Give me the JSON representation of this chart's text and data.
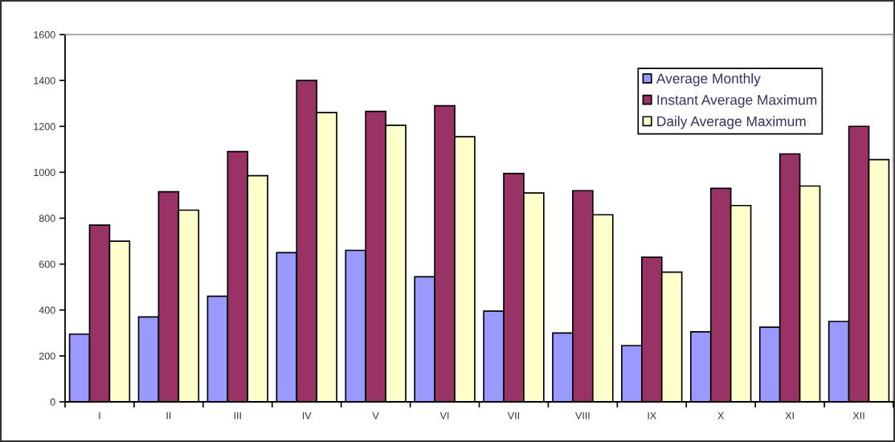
{
  "chart_data": {
    "type": "bar",
    "categories": [
      "I",
      "II",
      "III",
      "IV",
      "V",
      "VI",
      "VII",
      "VIII",
      "IX",
      "X",
      "XI",
      "XII"
    ],
    "series": [
      {
        "name": "Average Monthly",
        "color": "#9999ff",
        "values": [
          295,
          370,
          460,
          650,
          660,
          545,
          395,
          300,
          245,
          305,
          325,
          350
        ]
      },
      {
        "name": "Instant Average Maximum",
        "color": "#993366",
        "values": [
          770,
          915,
          1090,
          1400,
          1265,
          1290,
          995,
          920,
          630,
          930,
          1080,
          1200
        ]
      },
      {
        "name": "Daily Average Maximum",
        "color": "#ffffcc",
        "values": [
          700,
          835,
          985,
          1260,
          1205,
          1155,
          910,
          815,
          565,
          855,
          940,
          1055
        ]
      }
    ],
    "ylim": [
      0,
      1600
    ],
    "yticks": [
      0,
      200,
      400,
      600,
      800,
      1000,
      1200,
      1400,
      1600
    ],
    "grid": false,
    "legend": "top right"
  }
}
